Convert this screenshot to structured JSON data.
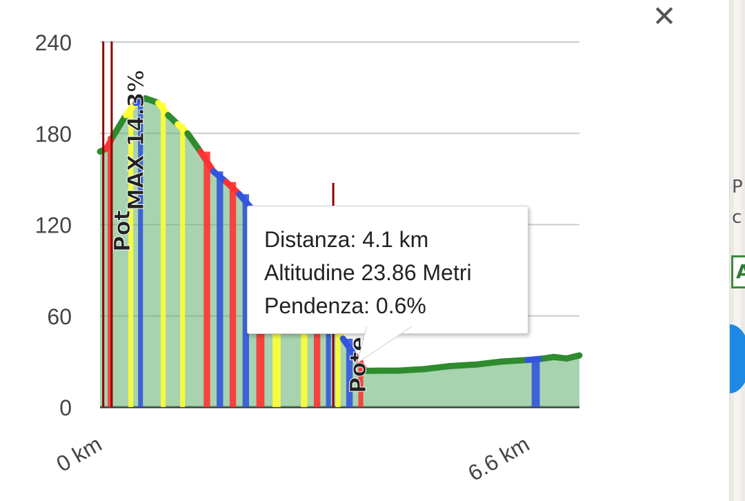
{
  "chart_data": {
    "type": "area",
    "title": "",
    "xlabel": "",
    "ylabel": "",
    "ylim": [
      0,
      240
    ],
    "xlim": [
      0,
      7.4
    ],
    "y_ticks": [
      "0",
      "60",
      "120",
      "180",
      "240"
    ],
    "x_ticks": [
      {
        "label": "0 km",
        "x": 0
      },
      {
        "label": "6.6 km",
        "x": 6.6
      }
    ],
    "grid": true,
    "x": [
      0.0,
      0.1,
      0.2,
      0.4,
      0.55,
      0.7,
      0.9,
      1.05,
      1.2,
      1.35,
      1.55,
      1.75,
      1.95,
      2.15,
      2.35,
      2.6,
      2.85,
      3.05,
      3.25,
      3.45,
      3.6,
      3.75,
      3.95,
      4.1,
      4.3,
      4.6,
      5.0,
      5.4,
      5.8,
      6.2,
      6.6,
      6.85,
      7.0,
      7.2,
      7.4
    ],
    "altitude": [
      168,
      170,
      178,
      192,
      200,
      203,
      200,
      192,
      186,
      180,
      168,
      155,
      148,
      140,
      130,
      118,
      108,
      95,
      80,
      66,
      55,
      45,
      33,
      23.86,
      24,
      24,
      25,
      27,
      28,
      30,
      31,
      32,
      33,
      32,
      34
    ],
    "segment_colors": [
      "#2e8b2e",
      "#ff3333",
      "#2e8b2e",
      "#ffff33",
      "#3355dd",
      "#2e8b2e",
      "#ffff33",
      "#2e8b2e",
      "#ffff33",
      "#2e8b2e",
      "#ff3333",
      "#3355dd",
      "#ff3333",
      "#3355dd",
      "#ff3333",
      "#ffff33",
      "#2e8b2e",
      "#ffff33",
      "#ff3333",
      "#3355dd",
      "#ffff33",
      "#3355dd",
      "#ff3333",
      "#2e8b2e",
      "#2e8b2e",
      "#2e8b2e",
      "#2e8b2e",
      "#2e8b2e",
      "#2e8b2e",
      "#2e8b2e",
      "#3355dd",
      "#2e8b2e",
      "#2e8b2e",
      "#2e8b2e"
    ],
    "markers": [
      {
        "x": 0.05,
        "label": "Pot",
        "color": "#8b0000"
      },
      {
        "x": 0.18,
        "label": "MAX 14.3%",
        "color": "#8b0000"
      },
      {
        "x": 3.6,
        "label": "Pote",
        "color": "#8b0000"
      }
    ],
    "tooltip": {
      "distance": "Distanza: 4.1 km",
      "altitude": "Altitudine 23.86 Metri",
      "gradient": "Pendenza: 0.6%"
    },
    "colors": {
      "green": "#2e8b2e",
      "yellow": "#ffff33",
      "red": "#ff3333",
      "blue": "#3355dd",
      "fill": "#5fae6e",
      "marker": "#8b0000"
    }
  },
  "ui": {
    "close_icon": "close-icon",
    "close_glyph": "✕",
    "map": {
      "text_top": "P",
      "text_bottom": "c",
      "badge": "A"
    }
  }
}
